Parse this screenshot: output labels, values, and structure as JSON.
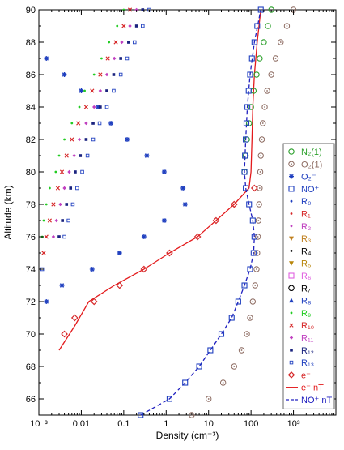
{
  "chart_data": {
    "type": "scatter",
    "xlabel": "Density (cm⁻³)",
    "ylabel": "Altitude (km)",
    "x_scale": "log",
    "xlim": [
      0.001,
      10000
    ],
    "ylim": [
      65,
      90
    ],
    "x_ticks": [
      {
        "value": 0.001,
        "label": "10⁻³"
      },
      {
        "value": 0.01,
        "label": "0.01"
      },
      {
        "value": 0.1,
        "label": "0.1"
      },
      {
        "value": 1,
        "label": "1"
      },
      {
        "value": 10,
        "label": "10"
      },
      {
        "value": 100,
        "label": "100"
      },
      {
        "value": 1000,
        "label": "10³"
      }
    ],
    "y_ticks": [
      66,
      68,
      70,
      72,
      74,
      76,
      78,
      80,
      82,
      84,
      86,
      88,
      90
    ],
    "legend_position": "right",
    "series": [
      {
        "name": "N₂(1)",
        "marker": "circle",
        "color": "#2ca02c",
        "points": [
          [
            300,
            90
          ],
          [
            250,
            89
          ],
          [
            200,
            88
          ],
          [
            160,
            87
          ],
          [
            135,
            86
          ],
          [
            115,
            85
          ],
          [
            100,
            84
          ],
          [
            90,
            83
          ],
          [
            80,
            82
          ],
          [
            75,
            81
          ],
          [
            70,
            80
          ]
        ]
      },
      {
        "name": "O₂(1)",
        "marker": "circle-dot",
        "color": "#8c6a60",
        "points": [
          [
            1000,
            90
          ],
          [
            700,
            89
          ],
          [
            500,
            88
          ],
          [
            380,
            87
          ],
          [
            300,
            86
          ],
          [
            240,
            85
          ],
          [
            210,
            84
          ],
          [
            190,
            83
          ],
          [
            180,
            82
          ],
          [
            170,
            81
          ],
          [
            165,
            80
          ],
          [
            160,
            79
          ],
          [
            155,
            78
          ],
          [
            150,
            77
          ],
          [
            145,
            76
          ],
          [
            140,
            75
          ],
          [
            135,
            74
          ],
          [
            125,
            73
          ],
          [
            110,
            72
          ],
          [
            95,
            71
          ],
          [
            80,
            70
          ],
          [
            60,
            69
          ],
          [
            40,
            68
          ],
          [
            22,
            67
          ],
          [
            10,
            66
          ],
          [
            4,
            65
          ]
        ]
      },
      {
        "name": "O₂⁻",
        "marker": "asterisk",
        "color": "#1f3fbf",
        "points": [
          [
            0.0015,
            87
          ],
          [
            0.004,
            86
          ],
          [
            0.01,
            85
          ],
          [
            0.025,
            84
          ],
          [
            0.05,
            83
          ],
          [
            0.12,
            82
          ],
          [
            0.35,
            81
          ],
          [
            0.9,
            80
          ],
          [
            2.5,
            79
          ],
          [
            2.8,
            78
          ],
          [
            0.9,
            77
          ],
          [
            0.3,
            76
          ],
          [
            0.08,
            75
          ],
          [
            0.018,
            74
          ],
          [
            0.0035,
            73
          ],
          [
            0.0015,
            72
          ]
        ]
      },
      {
        "name": "NO⁺",
        "marker": "square",
        "color": "#1f3fbf",
        "points": [
          [
            170,
            90
          ],
          [
            140,
            89
          ],
          [
            120,
            88
          ],
          [
            105,
            87
          ],
          [
            95,
            86
          ],
          [
            88,
            85
          ],
          [
            82,
            84
          ],
          [
            78,
            83
          ],
          [
            75,
            82
          ],
          [
            72,
            81
          ],
          [
            70,
            80
          ],
          [
            75,
            79
          ],
          [
            90,
            78
          ],
          [
            110,
            77
          ],
          [
            120,
            76
          ],
          [
            115,
            75
          ],
          [
            95,
            74
          ],
          [
            70,
            73
          ],
          [
            50,
            72
          ],
          [
            35,
            71
          ],
          [
            20,
            70
          ],
          [
            11,
            69
          ],
          [
            6,
            68
          ],
          [
            2.8,
            67
          ],
          [
            1.2,
            66
          ],
          [
            0.25,
            65
          ]
        ]
      },
      {
        "name": "R₀",
        "marker": "dot",
        "color": "#1f3fbf",
        "points": []
      },
      {
        "name": "R₁",
        "marker": "dot",
        "color": "#d62728",
        "points": []
      },
      {
        "name": "R₂",
        "marker": "dot",
        "color": "#c040c0",
        "points": []
      },
      {
        "name": "R₃",
        "marker": "triangle-down",
        "color": "#c08020",
        "points": []
      },
      {
        "name": "R₄",
        "marker": "dot",
        "color": "#000000",
        "points": []
      },
      {
        "name": "R₅",
        "marker": "triangle-down",
        "color": "#b8860b",
        "points": []
      },
      {
        "name": "R₆",
        "marker": "square",
        "color": "#e060e0",
        "points": []
      },
      {
        "name": "R₇",
        "marker": "circle",
        "color": "#000000",
        "points": []
      },
      {
        "name": "R₈",
        "marker": "triangle-up",
        "color": "#1f3fbf",
        "points": []
      },
      {
        "name": "R₉",
        "marker": "dot",
        "color": "#22cc22",
        "points": [
          [
            0.1,
            90
          ],
          [
            0.07,
            89
          ],
          [
            0.045,
            88
          ],
          [
            0.03,
            87
          ],
          [
            0.02,
            86
          ],
          [
            0.012,
            85
          ],
          [
            0.009,
            84
          ],
          [
            0.006,
            83
          ],
          [
            0.004,
            82
          ],
          [
            0.003,
            81
          ],
          [
            0.0025,
            80
          ],
          [
            0.0018,
            79
          ],
          [
            0.0015,
            78
          ],
          [
            0.0013,
            77
          ],
          [
            0.0012,
            76
          ]
        ]
      },
      {
        "name": "R₁₀",
        "marker": "x",
        "color": "#d62728",
        "points": [
          [
            0.14,
            90
          ],
          [
            0.1,
            89
          ],
          [
            0.065,
            88
          ],
          [
            0.042,
            87
          ],
          [
            0.028,
            86
          ],
          [
            0.018,
            85
          ],
          [
            0.013,
            84
          ],
          [
            0.0085,
            83
          ],
          [
            0.006,
            82
          ],
          [
            0.0045,
            81
          ],
          [
            0.0035,
            80
          ],
          [
            0.0028,
            79
          ],
          [
            0.0022,
            78
          ],
          [
            0.0018,
            77
          ],
          [
            0.0015,
            76
          ],
          [
            0.0013,
            75
          ]
        ]
      },
      {
        "name": "R₁₁",
        "marker": "diamond-small",
        "color": "#c040c0",
        "points": [
          [
            0.2,
            90
          ],
          [
            0.14,
            89
          ],
          [
            0.09,
            88
          ],
          [
            0.06,
            87
          ],
          [
            0.04,
            86
          ],
          [
            0.028,
            85
          ],
          [
            0.02,
            84
          ],
          [
            0.013,
            83
          ],
          [
            0.009,
            82
          ],
          [
            0.0068,
            81
          ],
          [
            0.0052,
            80
          ],
          [
            0.004,
            79
          ],
          [
            0.0032,
            78
          ],
          [
            0.0026,
            77
          ],
          [
            0.0022,
            76
          ]
        ]
      },
      {
        "name": "R₁₂",
        "marker": "filled-square",
        "color": "#1a237e",
        "points": [
          [
            0.28,
            90
          ],
          [
            0.2,
            89
          ],
          [
            0.13,
            88
          ],
          [
            0.085,
            87
          ],
          [
            0.058,
            86
          ],
          [
            0.04,
            85
          ],
          [
            0.028,
            84
          ],
          [
            0.019,
            83
          ],
          [
            0.013,
            82
          ],
          [
            0.0095,
            81
          ],
          [
            0.0072,
            80
          ],
          [
            0.0056,
            79
          ],
          [
            0.0045,
            78
          ],
          [
            0.0036,
            77
          ],
          [
            0.003,
            76
          ]
        ]
      },
      {
        "name": "R₁₃",
        "marker": "square-small",
        "color": "#1f3fbf",
        "points": [
          [
            0.4,
            90
          ],
          [
            0.28,
            89
          ],
          [
            0.18,
            88
          ],
          [
            0.12,
            87
          ],
          [
            0.085,
            86
          ],
          [
            0.058,
            85
          ],
          [
            0.04,
            84
          ],
          [
            0.027,
            83
          ],
          [
            0.019,
            82
          ],
          [
            0.014,
            81
          ],
          [
            0.0105,
            80
          ],
          [
            0.008,
            79
          ],
          [
            0.0063,
            78
          ],
          [
            0.005,
            77
          ],
          [
            0.004,
            76
          ],
          [
            0.0012,
            74
          ]
        ]
      },
      {
        "name": "e⁻",
        "marker": "diamond",
        "color": "#d62728",
        "points": [
          [
            120,
            79
          ],
          [
            40,
            78
          ],
          [
            15,
            77
          ],
          [
            5.5,
            76
          ],
          [
            1.2,
            75
          ],
          [
            0.3,
            74
          ],
          [
            0.08,
            73
          ],
          [
            0.02,
            72
          ],
          [
            0.007,
            71
          ],
          [
            0.004,
            70
          ]
        ]
      }
    ],
    "lines": [
      {
        "name": "e⁻ nT",
        "style": "solid",
        "color": "#e31a1c",
        "points": [
          [
            0.003,
            69
          ],
          [
            0.007,
            70.5
          ],
          [
            0.015,
            72
          ],
          [
            0.06,
            73
          ],
          [
            0.3,
            74
          ],
          [
            1.2,
            75
          ],
          [
            5.5,
            76
          ],
          [
            15,
            77
          ],
          [
            40,
            78
          ],
          [
            90,
            79
          ],
          [
            100,
            80
          ],
          [
            105,
            82
          ],
          [
            110,
            84
          ],
          [
            120,
            86
          ],
          [
            140,
            88
          ],
          [
            170,
            90
          ]
        ]
      },
      {
        "name": "NO⁺ nT",
        "style": "dashed",
        "color": "#2020c0",
        "points": [
          [
            0.25,
            65
          ],
          [
            1.2,
            66
          ],
          [
            2.8,
            67
          ],
          [
            6,
            68
          ],
          [
            11,
            69
          ],
          [
            20,
            70
          ],
          [
            35,
            71
          ],
          [
            50,
            72
          ],
          [
            70,
            73
          ],
          [
            95,
            74
          ],
          [
            115,
            75
          ],
          [
            120,
            76
          ],
          [
            110,
            77
          ],
          [
            90,
            78
          ],
          [
            75,
            79
          ],
          [
            70,
            80
          ],
          [
            75,
            82
          ],
          [
            82,
            84
          ],
          [
            95,
            86
          ],
          [
            120,
            88
          ],
          [
            170,
            90
          ]
        ]
      }
    ]
  }
}
